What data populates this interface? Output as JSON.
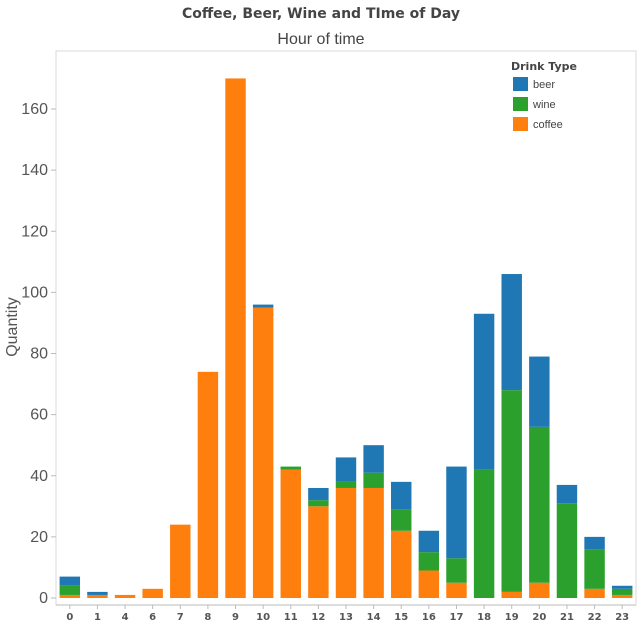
{
  "chart_data": {
    "type": "bar",
    "stacked": true,
    "title": "Coffee, Beer, Wine and TIme of Day",
    "subtitle": "Hour of time",
    "ylabel": "Quantity",
    "xlabel": "",
    "ylim": [
      0,
      175
    ],
    "yticks": [
      0,
      20,
      40,
      60,
      80,
      100,
      120,
      140,
      160
    ],
    "grid": false,
    "legend": {
      "title": "Drink Type",
      "position": "top-right"
    },
    "categories": [
      "0",
      "1",
      "4",
      "6",
      "7",
      "8",
      "9",
      "10",
      "11",
      "12",
      "13",
      "14",
      "15",
      "16",
      "17",
      "18",
      "19",
      "20",
      "21",
      "22",
      "23"
    ],
    "series": [
      {
        "name": "coffee",
        "color": "#ff7f0e",
        "values": [
          1,
          1,
          1,
          3,
          24,
          74,
          170,
          95,
          42,
          30,
          36,
          36,
          22,
          9,
          5,
          0,
          2,
          5,
          0,
          3,
          1
        ]
      },
      {
        "name": "wine",
        "color": "#2ca02c",
        "values": [
          3,
          0,
          0,
          0,
          0,
          0,
          0,
          0,
          1,
          2,
          2,
          5,
          7,
          6,
          8,
          42,
          66,
          51,
          31,
          13,
          2
        ]
      },
      {
        "name": "beer",
        "color": "#1f77b4",
        "values": [
          3,
          1,
          0,
          0,
          0,
          0,
          0,
          1,
          0,
          4,
          8,
          9,
          9,
          7,
          30,
          51,
          38,
          23,
          6,
          4,
          1
        ]
      }
    ],
    "legend_order": [
      "beer",
      "wine",
      "coffee"
    ]
  }
}
